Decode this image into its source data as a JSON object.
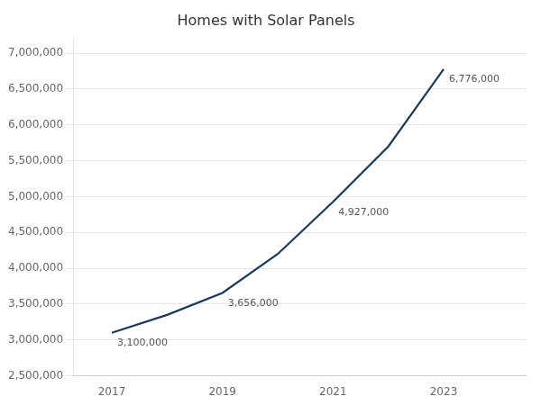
{
  "chart_data": {
    "type": "line",
    "title": "Homes with Solar Panels",
    "x": [
      2017,
      2018,
      2019,
      2020,
      2021,
      2022,
      2023
    ],
    "values": [
      3100000,
      3350000,
      3656000,
      4200000,
      4927000,
      5700000,
      6776000
    ],
    "color": "#1a3a5c",
    "xlim": [
      2016.3,
      2024.5
    ],
    "xticks": [
      2017,
      2019,
      2021,
      2023
    ],
    "ylim": [
      2500000,
      7200000
    ],
    "yticks": [
      {
        "value": 2500000,
        "label": "2,500,000"
      },
      {
        "value": 3000000,
        "label": "3,000,000"
      },
      {
        "value": 3500000,
        "label": "3,500,000"
      },
      {
        "value": 4000000,
        "label": "4,000,000"
      },
      {
        "value": 4500000,
        "label": "4,500,000"
      },
      {
        "value": 5000000,
        "label": "5,000,000"
      },
      {
        "value": 5500000,
        "label": "5,500,000"
      },
      {
        "value": 6000000,
        "label": "6,000,000"
      },
      {
        "value": 6500000,
        "label": "6,500,000"
      },
      {
        "value": 7000000,
        "label": "7,000,000"
      }
    ],
    "grid": "y",
    "annotations": [
      {
        "x": 2017,
        "y": 3100000,
        "label": "3,100,000"
      },
      {
        "x": 2019,
        "y": 3656000,
        "label": "3,656,000"
      },
      {
        "x": 2021,
        "y": 4927000,
        "label": "4,927,000"
      },
      {
        "x": 2023,
        "y": 6776000,
        "label": "6,776,000"
      }
    ]
  }
}
